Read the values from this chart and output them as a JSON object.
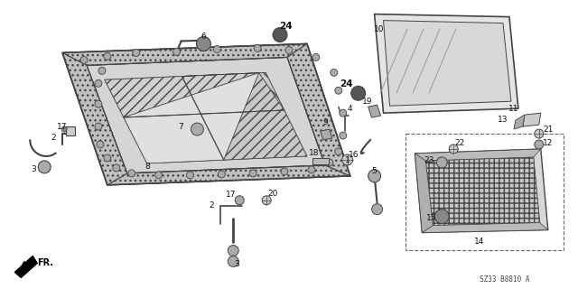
{
  "bg_color": "#ffffff",
  "diagram_code": "SZ33 B8810 A",
  "fr_label": "FR.",
  "fig_width": 6.4,
  "fig_height": 3.2,
  "line_color": "#444444",
  "text_color": "#111111"
}
